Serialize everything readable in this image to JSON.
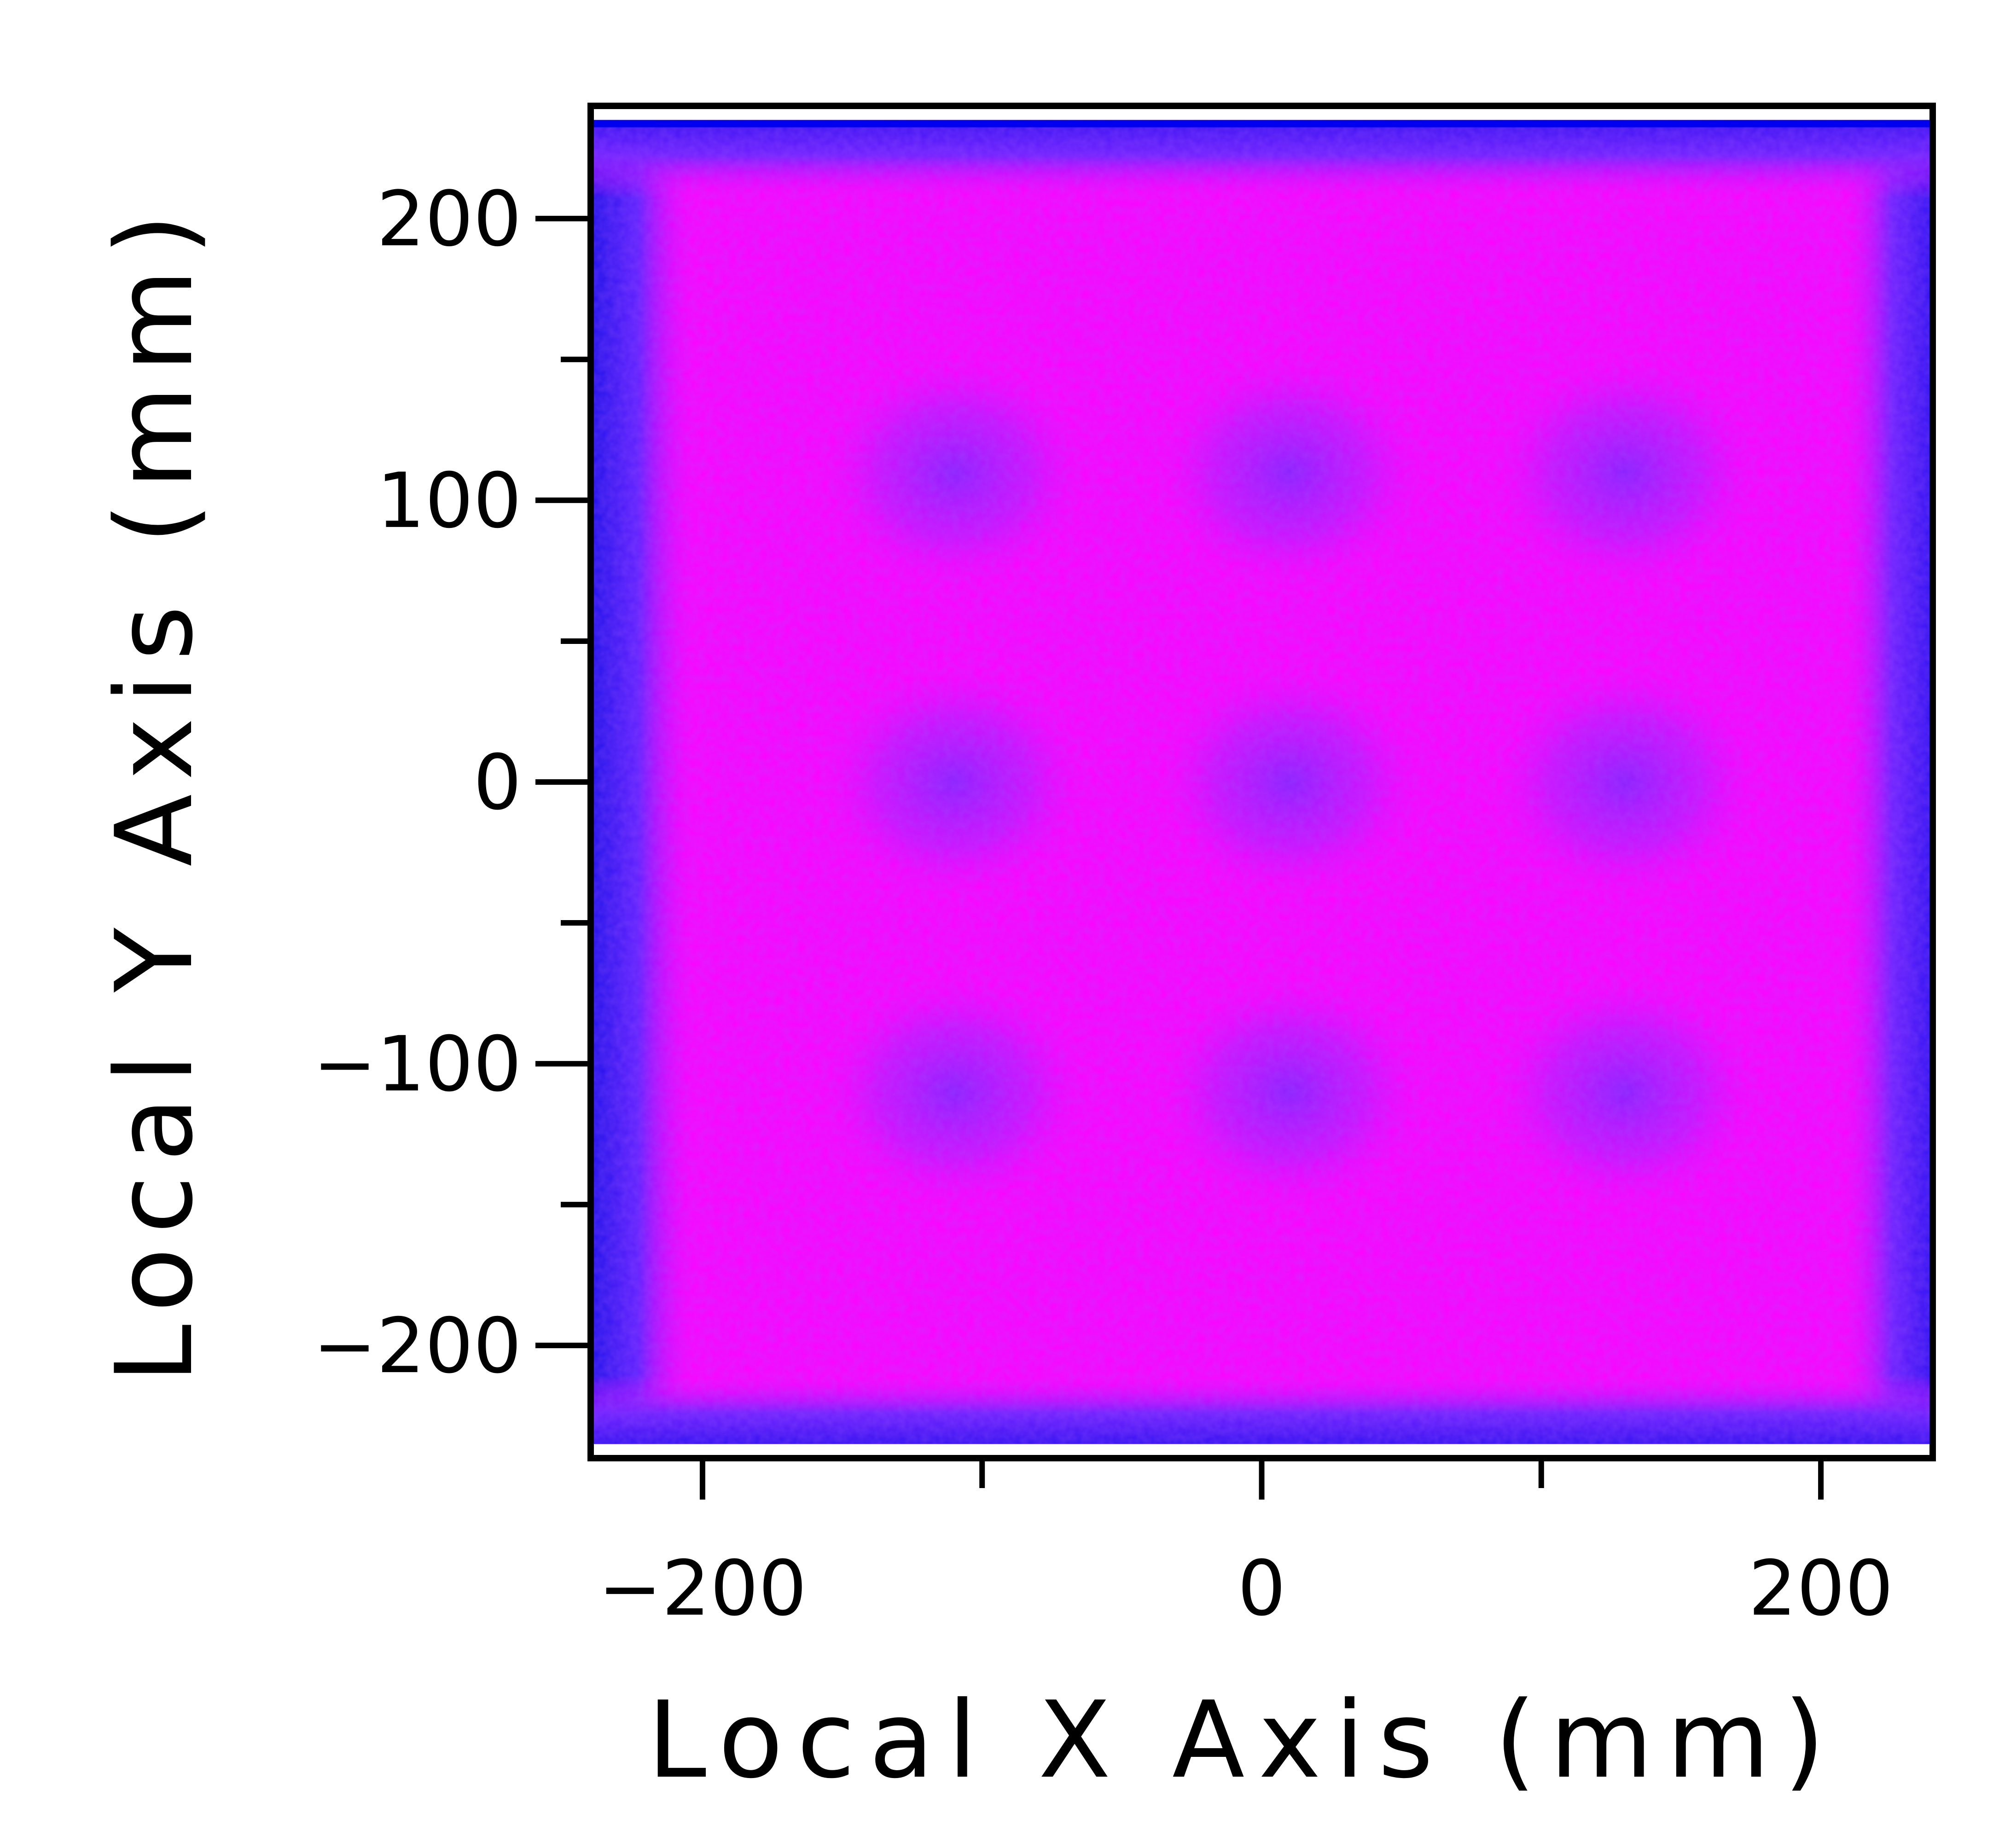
{
  "chart_data": {
    "type": "heatmap",
    "xlabel": "Local X Axis (mm)",
    "ylabel": "Local Y Axis (mm)",
    "xlim": [
      -240,
      240
    ],
    "ylim": [
      -240,
      240
    ],
    "data_extent": {
      "x": [
        -240,
        240
      ],
      "y": [
        -235,
        235
      ]
    },
    "x_ticks": [
      {
        "value": -200,
        "label": "−200"
      },
      {
        "value": 0,
        "label": "0"
      },
      {
        "value": 200,
        "label": "200"
      }
    ],
    "x_minor_ticks": [
      -100,
      100
    ],
    "y_ticks": [
      {
        "value": 200,
        "label": "200"
      },
      {
        "value": 100,
        "label": "100"
      },
      {
        "value": 0,
        "label": "0"
      },
      {
        "value": -100,
        "label": "−100"
      },
      {
        "value": -200,
        "label": "−200"
      }
    ],
    "y_minor_ticks": [
      150,
      50,
      -50,
      -150
    ],
    "low_density_spots": {
      "x": [
        -110,
        10,
        130
      ],
      "y": [
        110,
        0,
        -110
      ]
    },
    "colors": {
      "high": "#ff00ff",
      "mid": "#8020ff",
      "low": "#1010e0",
      "frame": "#000000",
      "top_edge": "#0000ee"
    },
    "grid": false,
    "legend": "none"
  }
}
